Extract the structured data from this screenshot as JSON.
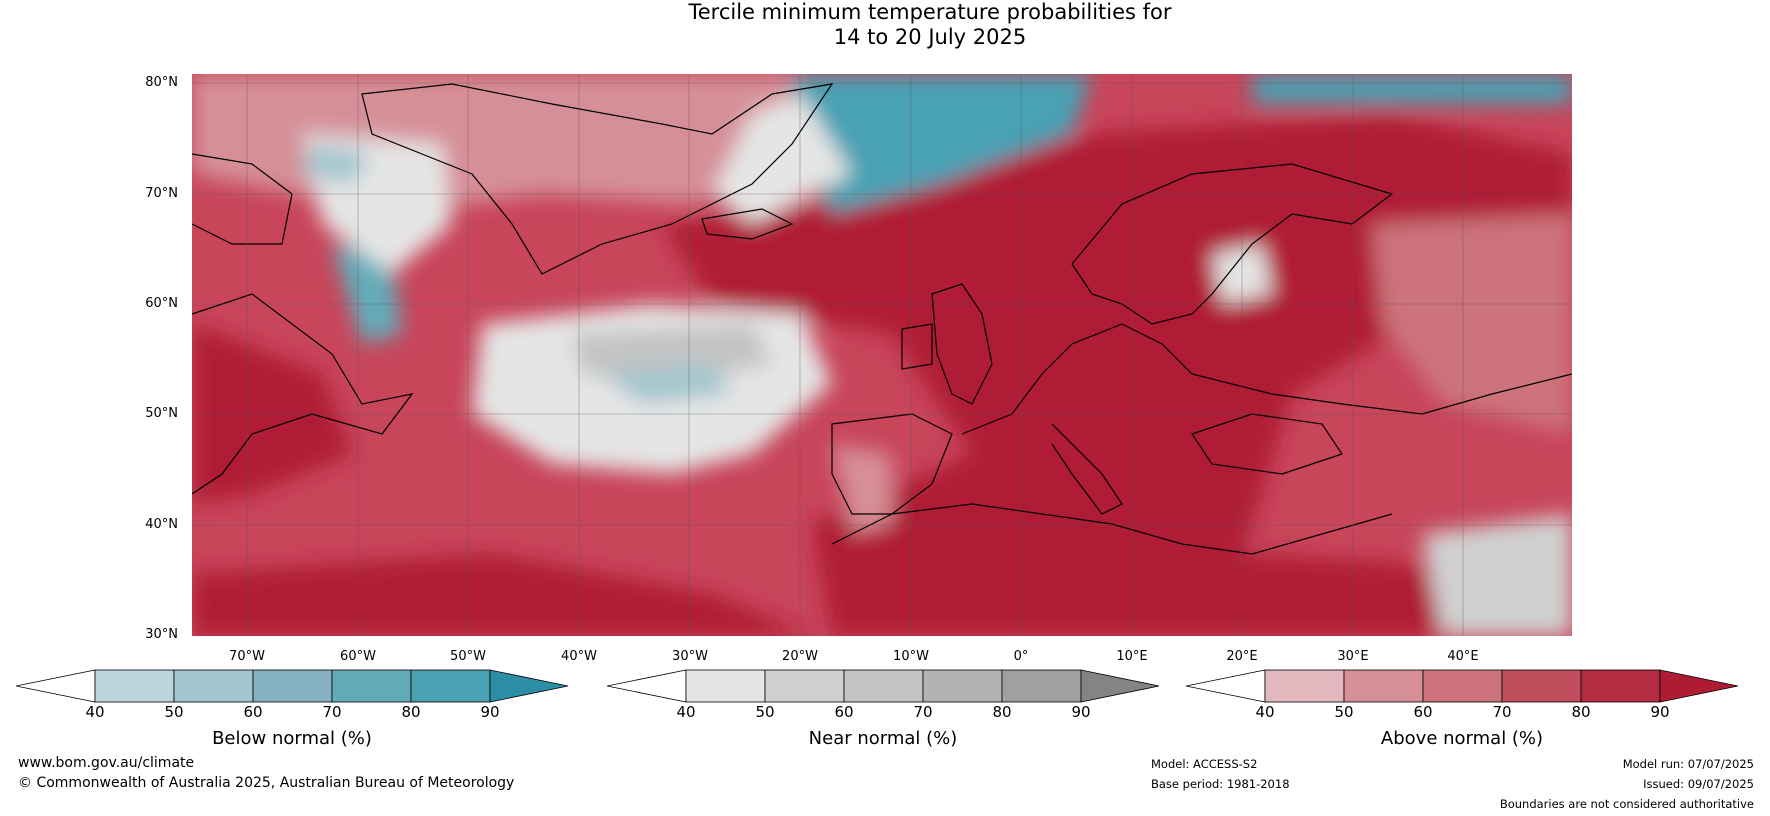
{
  "title": {
    "line1": "Tercile minimum temperature probabilities for",
    "line2": "14 to 20 July 2025"
  },
  "lat_labels": [
    "80°N",
    "70°N",
    "60°N",
    "50°N",
    "40°N",
    "30°N"
  ],
  "lon_labels": [
    "70°W",
    "60°W",
    "50°W",
    "40°W",
    "30°W",
    "20°W",
    "10°W",
    "0°",
    "10°E",
    "20°E",
    "30°E",
    "40°E"
  ],
  "colorbars": [
    {
      "title": "Below normal (%)",
      "ticks": [
        "40",
        "50",
        "60",
        "70",
        "80",
        "90"
      ],
      "colors": [
        "#ffffff",
        "#bcd4dc",
        "#a3c6cf",
        "#86b1c3",
        "#64abb9",
        "#4aa1b4",
        "#2b8ea4"
      ]
    },
    {
      "title": "Near normal (%)",
      "ticks": [
        "40",
        "50",
        "60",
        "70",
        "80",
        "90"
      ],
      "colors": [
        "#ffffff",
        "#e5e5e5",
        "#d0d0d0",
        "#c3c3c3",
        "#b3b3b3",
        "#a0a0a0",
        "#848484"
      ]
    },
    {
      "title": "Above normal (%)",
      "ticks": [
        "40",
        "50",
        "60",
        "70",
        "80",
        "90"
      ],
      "colors": [
        "#ffffff",
        "#e3b8bf",
        "#d68f98",
        "#cc737c",
        "#c04e5c",
        "#b42c42",
        "#b01b34"
      ]
    }
  ],
  "footer": {
    "website": "www.bom.gov.au/climate",
    "copyright": "© Commonwealth of Australia 2025, Australian Bureau of Meteorology",
    "model": "Model: ACCESS-S2",
    "base_period": "Base period: 1981-2018",
    "model_run": "Model run: 07/07/2025",
    "issued": "Issued: 09/07/2025",
    "disclaimer": "Boundaries are not considered authoritative"
  },
  "map_colors": {
    "above_strong": "#b01b34",
    "above_mid": "#c04e5c",
    "above_light": "#d68f98",
    "near": "#d0d0d0",
    "near_light": "#e5e5e5",
    "below": "#a3c6cf",
    "below_strong": "#2b8ea4",
    "coast": "#000000",
    "border": "#777777",
    "grid": "#555555"
  }
}
